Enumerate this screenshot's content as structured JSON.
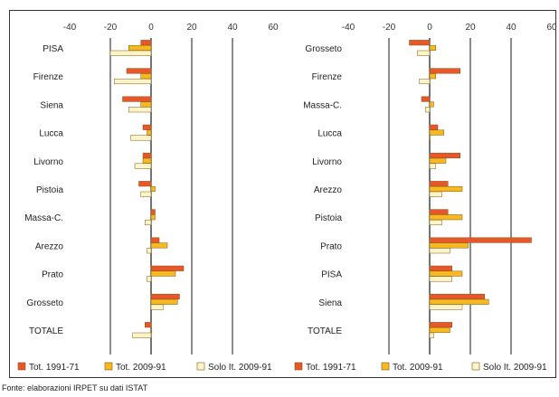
{
  "colors": {
    "tot_1991_71": "#e8562a",
    "tot_2009_91": "#f8b820",
    "solo_2009_91": "#fdf4c8",
    "bar_outline": "#7a5a1a",
    "grid": "#000000",
    "frame": "#333333"
  },
  "chart_data": [
    {
      "type": "bar",
      "orientation": "horizontal",
      "xlim": [
        -40,
        60
      ],
      "xticks": [
        "-40",
        "-20",
        "0",
        "20",
        "40",
        "60"
      ],
      "grid": true,
      "legend_position": "bottom",
      "categories": [
        "PISA",
        "Firenze",
        "Siena",
        "Lucca",
        "Livorno",
        "Pistoia",
        "Massa-C.",
        "Arezzo",
        "Prato",
        "Grosseto",
        "TOTALE"
      ],
      "series": [
        {
          "name": "Tot. 1991-71",
          "values": [
            -5,
            -12,
            -14,
            -4,
            -4,
            -6,
            2,
            4,
            16,
            14,
            -3
          ]
        },
        {
          "name": "Tot. 2009-91",
          "values": [
            -11,
            -5,
            -5,
            -2,
            -4,
            2,
            2,
            8,
            12,
            13,
            0
          ]
        },
        {
          "name": "Solo It. 2009-91",
          "values": [
            -20,
            -18,
            -11,
            -10,
            -8,
            -5,
            -3,
            -2,
            -2,
            6,
            -9
          ]
        }
      ]
    },
    {
      "type": "bar",
      "orientation": "horizontal",
      "xlim": [
        -40,
        60
      ],
      "xticks": [
        "-40",
        "-20",
        "0",
        "20",
        "40",
        "60"
      ],
      "grid": true,
      "legend_position": "bottom",
      "categories": [
        "Grosseto",
        "Firenze",
        "Massa-C.",
        "Lucca",
        "Livorno",
        "Arezzo",
        "Pistoia",
        "Prato",
        "PISA",
        "Siena",
        "TOTALE"
      ],
      "series": [
        {
          "name": "Tot. 1991-71",
          "values": [
            -10,
            15,
            -4,
            4,
            15,
            9,
            9,
            50,
            11,
            27,
            11
          ]
        },
        {
          "name": "Tot. 2009-91",
          "values": [
            3,
            3,
            2,
            7,
            8,
            16,
            16,
            19,
            16,
            29,
            10
          ]
        },
        {
          "name": "Solo It. 2009-91",
          "values": [
            -6,
            -5,
            -2,
            0,
            3,
            6,
            6,
            10,
            11,
            16,
            2
          ]
        }
      ]
    }
  ],
  "legend": {
    "items": [
      {
        "label": "Tot. 1991-71"
      },
      {
        "label": "Tot. 2009-91"
      },
      {
        "label": "Solo It. 2009-91"
      }
    ]
  },
  "source": "Fonte: elaborazioni IRPET su dati ISTAT"
}
